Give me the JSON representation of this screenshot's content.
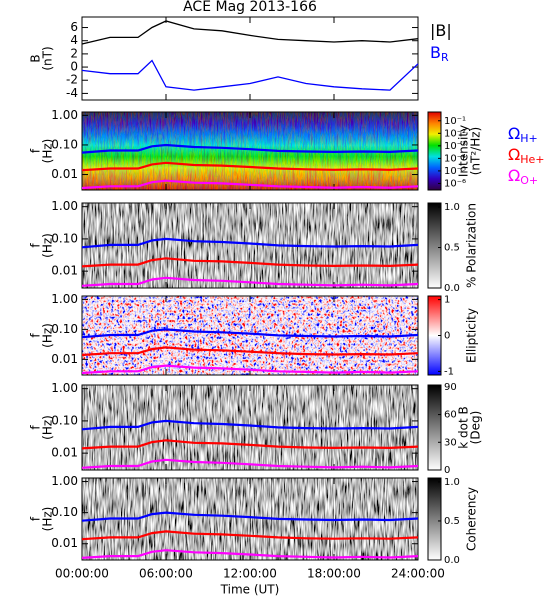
{
  "chart_data": [
    {
      "type": "line",
      "title": "ACE Mag 2013-166",
      "ylabel": [
        "B",
        "(nT)"
      ],
      "x": [
        0,
        2,
        4,
        5,
        6,
        8,
        10,
        12,
        14,
        16,
        18,
        20,
        22,
        24
      ],
      "xlim": [
        0,
        24
      ],
      "ylim": [
        -5,
        7.6
      ],
      "yticks": [
        -4,
        -2,
        0,
        2,
        4,
        6
      ],
      "series": [
        {
          "name": "|B|",
          "color": "#000000",
          "values": [
            3.5,
            4.5,
            4.5,
            6,
            7,
            5.8,
            5.5,
            4.8,
            4.2,
            4,
            3.8,
            4,
            3.8,
            4.3
          ]
        },
        {
          "name": "B",
          "subscript": "R",
          "color": "#0000ff",
          "values": [
            -0.5,
            -1,
            -1,
            1,
            -3,
            -3.5,
            -3,
            -2.5,
            -1.5,
            -2.5,
            -3,
            -3.3,
            -3.5,
            0.5
          ]
        }
      ]
    },
    {
      "type": "spectrogram",
      "ylabel": [
        "f",
        "(Hz)"
      ],
      "x": [
        0,
        2,
        4,
        5,
        6,
        8,
        10,
        12,
        14,
        16,
        18,
        20,
        22,
        24
      ],
      "xlim": [
        0,
        24
      ],
      "ylim": [
        0.003,
        1.3
      ],
      "log": true,
      "yticks": [
        {
          "value": 0.01,
          "label": "0.01"
        },
        {
          "value": 0.1,
          "label": "0.10"
        },
        {
          "value": 1,
          "label": "1.00"
        }
      ],
      "colorbar": {
        "label": [
          "Intensity",
          "(nT²/Hz)"
        ],
        "lim": [
          3e-07,
          0.5
        ],
        "log": true,
        "ticks": [
          {
            "value": 1e-06,
            "label": "10⁻⁶"
          },
          {
            "value": 1e-05,
            "label": "10⁻⁵"
          },
          {
            "value": 0.0001,
            "label": "10⁻⁴"
          },
          {
            "value": 0.001,
            "label": "10⁻³"
          },
          {
            "value": 0.01,
            "label": "10⁻²"
          },
          {
            "value": 0.1,
            "label": "10⁻¹"
          }
        ],
        "colors": [
          "#300040",
          "#3000c0",
          "#0060ff",
          "#00e0e0",
          "#00e000",
          "#f0f000",
          "#ff8000",
          "#e00000"
        ]
      },
      "series": [
        {
          "name": "Ω",
          "subscript": "H+",
          "color": "#0000ff",
          "values": [
            0.055,
            0.065,
            0.065,
            0.09,
            0.1,
            0.085,
            0.08,
            0.072,
            0.063,
            0.06,
            0.058,
            0.06,
            0.058,
            0.065
          ]
        },
        {
          "name": "Ω",
          "subscript": "He+",
          "color": "#ff0000",
          "values": [
            0.014,
            0.016,
            0.016,
            0.022,
            0.025,
            0.021,
            0.02,
            0.018,
            0.016,
            0.015,
            0.0145,
            0.015,
            0.0145,
            0.016
          ]
        },
        {
          "name": "Ω",
          "subscript": "O+",
          "color": "#ff00ff",
          "values": [
            0.0035,
            0.004,
            0.004,
            0.0055,
            0.0062,
            0.0053,
            0.005,
            0.0045,
            0.004,
            0.0038,
            0.0036,
            0.0038,
            0.0036,
            0.004
          ]
        }
      ]
    },
    {
      "type": "spectrogram",
      "ylabel": [
        "f",
        "(Hz)"
      ],
      "x": [
        0,
        2,
        4,
        5,
        6,
        8,
        10,
        12,
        14,
        16,
        18,
        20,
        22,
        24
      ],
      "xlim": [
        0,
        24
      ],
      "ylim": [
        0.003,
        1.3
      ],
      "log": true,
      "yticks": [
        {
          "value": 0.01,
          "label": "0.01"
        },
        {
          "value": 0.1,
          "label": "0.10"
        },
        {
          "value": 1,
          "label": "1.00"
        }
      ],
      "colorbar": {
        "label": [
          "% Polarization"
        ],
        "lim": [
          0,
          1.05
        ],
        "log": false,
        "ticks": [
          {
            "value": 0,
            "label": "0.0"
          },
          {
            "value": 0.5,
            "label": "0.5"
          },
          {
            "value": 1,
            "label": "1.0"
          }
        ],
        "colors": [
          "#ffffff",
          "#000000"
        ]
      },
      "series": [
        {
          "color": "#0000ff",
          "values": [
            0.055,
            0.065,
            0.065,
            0.09,
            0.1,
            0.085,
            0.08,
            0.072,
            0.063,
            0.06,
            0.058,
            0.06,
            0.058,
            0.065
          ]
        },
        {
          "color": "#ff0000",
          "values": [
            0.014,
            0.016,
            0.016,
            0.022,
            0.025,
            0.021,
            0.02,
            0.018,
            0.016,
            0.015,
            0.0145,
            0.015,
            0.0145,
            0.016
          ]
        },
        {
          "color": "#ff00ff",
          "values": [
            0.0035,
            0.004,
            0.004,
            0.0055,
            0.0062,
            0.0053,
            0.005,
            0.0045,
            0.004,
            0.0038,
            0.0036,
            0.0038,
            0.0036,
            0.004
          ]
        }
      ]
    },
    {
      "type": "spectrogram",
      "ylabel": [
        "f",
        "(Hz)"
      ],
      "x": [
        0,
        2,
        4,
        5,
        6,
        8,
        10,
        12,
        14,
        16,
        18,
        20,
        22,
        24
      ],
      "xlim": [
        0,
        24
      ],
      "ylim": [
        0.003,
        1.3
      ],
      "log": true,
      "yticks": [
        {
          "value": 0.01,
          "label": "0.01"
        },
        {
          "value": 0.1,
          "label": "0.10"
        },
        {
          "value": 1,
          "label": "1.00"
        }
      ],
      "colorbar": {
        "label": [
          "Ellipticity"
        ],
        "lim": [
          -1.1,
          1.1
        ],
        "log": false,
        "ticks": [
          -1,
          0,
          1
        ],
        "colors": [
          "#0000ff",
          "#ffffff",
          "#ff0000"
        ]
      },
      "series": [
        {
          "color": "#0000ff",
          "values": [
            0.055,
            0.065,
            0.065,
            0.09,
            0.1,
            0.085,
            0.08,
            0.072,
            0.063,
            0.06,
            0.058,
            0.06,
            0.058,
            0.065
          ]
        },
        {
          "color": "#ff0000",
          "values": [
            0.014,
            0.016,
            0.016,
            0.022,
            0.025,
            0.021,
            0.02,
            0.018,
            0.016,
            0.015,
            0.0145,
            0.015,
            0.0145,
            0.016
          ]
        },
        {
          "color": "#ff00ff",
          "values": [
            0.0035,
            0.004,
            0.004,
            0.0055,
            0.0062,
            0.0053,
            0.005,
            0.0045,
            0.004,
            0.0038,
            0.0036,
            0.0038,
            0.0036,
            0.004
          ]
        }
      ]
    },
    {
      "type": "spectrogram",
      "ylabel": [
        "f",
        "(Hz)"
      ],
      "x": [
        0,
        2,
        4,
        5,
        6,
        8,
        10,
        12,
        14,
        16,
        18,
        20,
        22,
        24
      ],
      "xlim": [
        0,
        24
      ],
      "ylim": [
        0.003,
        1.3
      ],
      "log": true,
      "yticks": [
        {
          "value": 0.01,
          "label": "0.01"
        },
        {
          "value": 0.1,
          "label": "0.10"
        },
        {
          "value": 1,
          "label": "1.00"
        }
      ],
      "colorbar": {
        "label": [
          "k dot B",
          "(Deg)"
        ],
        "lim": [
          0,
          92
        ],
        "log": false,
        "ticks": [
          0,
          30,
          60,
          90
        ],
        "colors": [
          "#ffffff",
          "#000000"
        ]
      },
      "series": [
        {
          "color": "#0000ff",
          "values": [
            0.055,
            0.065,
            0.065,
            0.09,
            0.1,
            0.085,
            0.08,
            0.072,
            0.063,
            0.06,
            0.058,
            0.06,
            0.058,
            0.065
          ]
        },
        {
          "color": "#ff0000",
          "values": [
            0.014,
            0.016,
            0.016,
            0.022,
            0.025,
            0.021,
            0.02,
            0.018,
            0.016,
            0.015,
            0.0145,
            0.015,
            0.0145,
            0.016
          ]
        },
        {
          "color": "#ff00ff",
          "values": [
            0.0035,
            0.004,
            0.004,
            0.0055,
            0.0062,
            0.0053,
            0.005,
            0.0045,
            0.004,
            0.0038,
            0.0036,
            0.0038,
            0.0036,
            0.004
          ]
        }
      ]
    },
    {
      "type": "spectrogram",
      "ylabel": [
        "f",
        "(Hz)"
      ],
      "x": [
        0,
        2,
        4,
        5,
        6,
        8,
        10,
        12,
        14,
        16,
        18,
        20,
        22,
        24
      ],
      "xlim": [
        0,
        24
      ],
      "ylim": [
        0.003,
        1.3
      ],
      "log": true,
      "yticks": [
        {
          "value": 0.01,
          "label": "0.01"
        },
        {
          "value": 0.1,
          "label": "0.10"
        },
        {
          "value": 1,
          "label": "1.00"
        }
      ],
      "colorbar": {
        "label": [
          "Coherency"
        ],
        "lim": [
          0,
          1.05
        ],
        "log": false,
        "ticks": [
          {
            "value": 0,
            "label": "0.0"
          },
          {
            "value": 0.5,
            "label": "0.5"
          },
          {
            "value": 1,
            "label": "1.0"
          }
        ],
        "colors": [
          "#ffffff",
          "#000000"
        ]
      },
      "xlabel": "Time (UT)",
      "xticks": [
        {
          "value": 0,
          "label": "00:00:00"
        },
        {
          "value": 6,
          "label": "06:00:00"
        },
        {
          "value": 12,
          "label": "12:00:00"
        },
        {
          "value": 18,
          "label": "18:00:00"
        },
        {
          "value": 24,
          "label": "24:00:00"
        }
      ],
      "series": [
        {
          "color": "#0000ff",
          "values": [
            0.055,
            0.065,
            0.065,
            0.09,
            0.1,
            0.085,
            0.08,
            0.072,
            0.063,
            0.06,
            0.058,
            0.06,
            0.058,
            0.065
          ]
        },
        {
          "color": "#ff0000",
          "values": [
            0.014,
            0.016,
            0.016,
            0.022,
            0.025,
            0.021,
            0.02,
            0.018,
            0.016,
            0.015,
            0.0145,
            0.015,
            0.0145,
            0.016
          ]
        },
        {
          "color": "#ff00ff",
          "values": [
            0.0035,
            0.004,
            0.004,
            0.0055,
            0.0062,
            0.0053,
            0.005,
            0.0045,
            0.004,
            0.0038,
            0.0036,
            0.0038,
            0.0036,
            0.004
          ]
        }
      ]
    }
  ]
}
